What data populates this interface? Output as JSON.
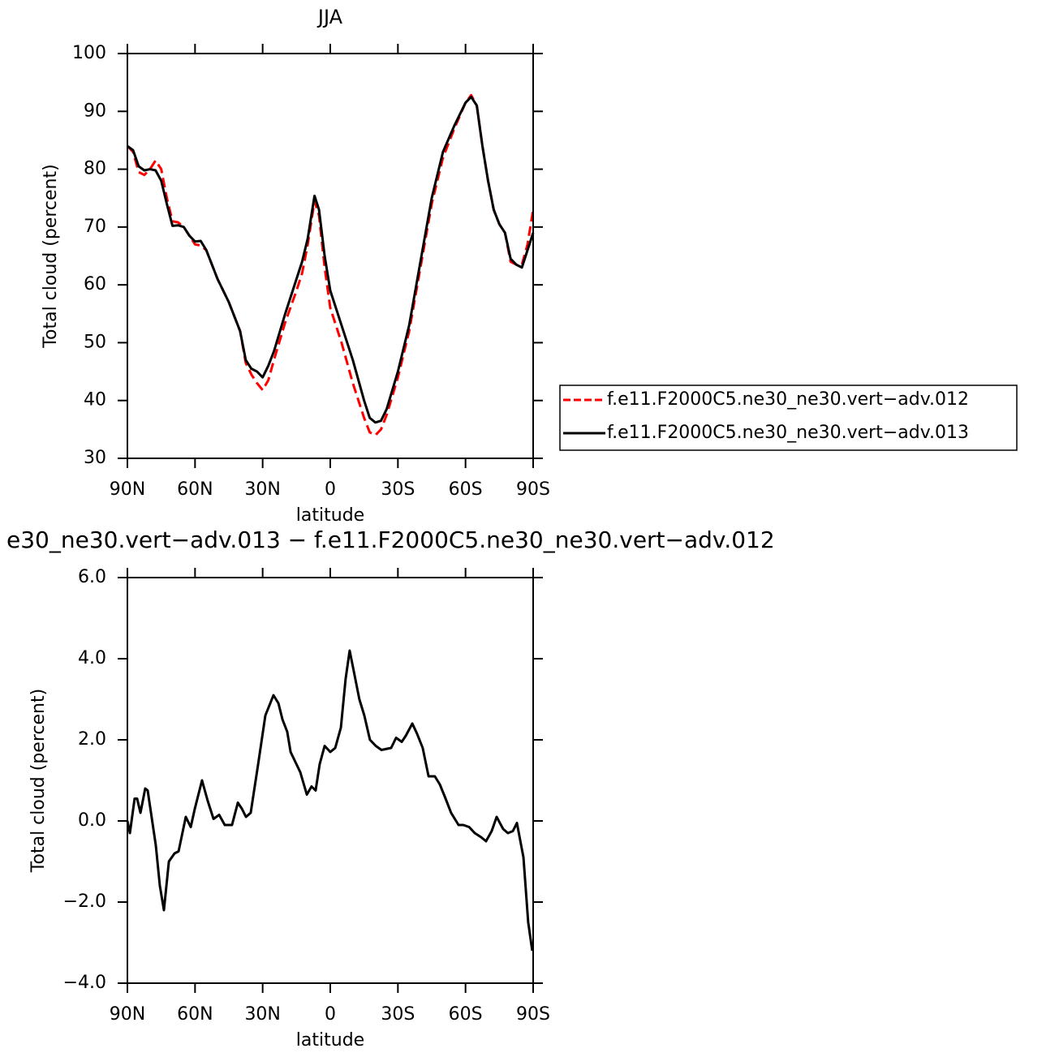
{
  "chart_data": [
    {
      "type": "line",
      "title": "JJA",
      "x_label": "latitude",
      "y_label": "Total cloud (percent)",
      "x": [
        90,
        87.5,
        85,
        82.5,
        80,
        77.5,
        75,
        72.5,
        70,
        67.5,
        65,
        62.5,
        60,
        57.5,
        55,
        50,
        45,
        40,
        37.5,
        35,
        32.5,
        30,
        27.5,
        25,
        20,
        15,
        12.5,
        10,
        7,
        5,
        2.5,
        0,
        -5,
        -10,
        -15,
        -17.5,
        -20,
        -22.5,
        -25,
        -30,
        -35,
        -40,
        -45,
        -50,
        -55,
        -60,
        -62.5,
        -65,
        -67.5,
        -70,
        -72.5,
        -75,
        -77.5,
        -80,
        -82.5,
        -85,
        -87.5,
        -90
      ],
      "series": [
        {
          "name": "f.e11.F2000C5.ne30_ne30.vert−adv.012",
          "color": "#ff0000",
          "dashed": true,
          "values": [
            84,
            83,
            79.5,
            79,
            80,
            81.5,
            80,
            75,
            71,
            70.8,
            70,
            68.5,
            67,
            66.8,
            66,
            61,
            57,
            52,
            46.5,
            44.5,
            43,
            41.8,
            43.5,
            47,
            53.5,
            59,
            62,
            67,
            74.5,
            72,
            63,
            56,
            50,
            43,
            37,
            34.5,
            34,
            35,
            37.5,
            44,
            52,
            63,
            74,
            82,
            87,
            91.5,
            92.8,
            91,
            84,
            78,
            73,
            70.5,
            69,
            64,
            63.5,
            63.5,
            67,
            73
          ]
        },
        {
          "name": "f.e11.F2000C5.ne30_ne30.vert−adv.013",
          "color": "#000000",
          "dashed": false,
          "values": [
            84,
            83.3,
            80.5,
            79.8,
            80,
            79.8,
            78,
            74,
            70.2,
            70.3,
            70,
            68.5,
            67.5,
            67.6,
            66,
            61,
            57,
            52,
            47,
            45.5,
            45,
            44,
            46,
            48.5,
            55,
            61,
            64,
            68,
            75.4,
            73,
            65,
            59,
            53,
            47,
            40,
            37,
            36.2,
            36.5,
            38.5,
            45,
            53,
            64,
            75,
            83,
            87.5,
            91.5,
            92.5,
            91,
            84,
            78,
            73,
            70.5,
            69,
            64.5,
            63.5,
            63,
            66,
            69
          ]
        }
      ],
      "xlim": [
        90,
        -90
      ],
      "xticks": [
        {
          "value": 90,
          "label": "90N"
        },
        {
          "value": 60,
          "label": "60N"
        },
        {
          "value": 30,
          "label": "30N"
        },
        0,
        {
          "value": -30,
          "label": "30S"
        },
        {
          "value": -60,
          "label": "60S"
        },
        {
          "value": -90,
          "label": "90S"
        }
      ],
      "ylim": [
        30,
        100
      ],
      "yticks": [
        30,
        40,
        50,
        60,
        70,
        80,
        90,
        100
      ],
      "legend": "right"
    },
    {
      "type": "line",
      "title": "e30_ne30.vert−adv.013 − f.e11.F2000C5.ne30_ne30.vert−adv.012",
      "x_label": "latitude",
      "y_label": "Total cloud (percent)",
      "x": [
        90,
        88.9,
        86.8,
        85.7,
        84.2,
        82.1,
        81,
        77.4,
        75.6,
        73.8,
        71.6,
        69.1,
        67.3,
        64.1,
        61.9,
        60.1,
        56.9,
        54.4,
        51.8,
        49.3,
        46.8,
        43.6,
        41,
        39.2,
        37.4,
        35.3,
        32,
        28.8,
        25.2,
        23,
        21.2,
        19.1,
        17.6,
        13.3,
        10.4,
        8.3,
        6.5,
        4.7,
        2.5,
        0,
        -2.2,
        -4.7,
        -6.8,
        -8.6,
        -10.4,
        -12.9,
        -15.1,
        -17.6,
        -20.2,
        -22.7,
        -27,
        -29.2,
        -31.7,
        -33.5,
        -36.4,
        -38.5,
        -41,
        -43.6,
        -46.4,
        -48.6,
        -50.8,
        -53.6,
        -56.9,
        -59,
        -61.6,
        -64.1,
        -66.9,
        -69.1,
        -71.6,
        -73.8,
        -76.7,
        -78.8,
        -81,
        -82.8,
        -85.7,
        -87.8,
        -89.6
      ],
      "values": [
        0,
        -0.3,
        0.55,
        0.55,
        0.2,
        0.8,
        0.75,
        -0.6,
        -1.6,
        -2.2,
        -1,
        -0.8,
        -0.75,
        0.1,
        -0.15,
        0.3,
        1,
        0.5,
        0.05,
        0.15,
        -0.1,
        -0.1,
        0.45,
        0.3,
        0.1,
        0.2,
        1.4,
        2.6,
        3.1,
        2.9,
        2.5,
        2.2,
        1.7,
        1.2,
        0.65,
        0.85,
        0.75,
        1.4,
        1.85,
        1.7,
        1.8,
        2.3,
        3.5,
        4.2,
        3.7,
        3,
        2.6,
        2,
        1.85,
        1.75,
        1.8,
        2.05,
        1.95,
        2.1,
        2.4,
        2.15,
        1.8,
        1.1,
        1.1,
        0.9,
        0.6,
        0.2,
        -0.1,
        -0.1,
        -0.15,
        -0.3,
        -0.4,
        -0.5,
        -0.25,
        0.1,
        -0.2,
        -0.3,
        -0.25,
        -0.05,
        -0.9,
        -2.5,
        -3.2
      ],
      "color": "#000000",
      "xlim": [
        90,
        -90
      ],
      "xticks": [
        {
          "value": 90,
          "label": "90N"
        },
        {
          "value": 60,
          "label": "60N"
        },
        {
          "value": 30,
          "label": "30N"
        },
        0,
        {
          "value": -30,
          "label": "30S"
        },
        {
          "value": -60,
          "label": "60S"
        },
        {
          "value": -90,
          "label": "90S"
        }
      ],
      "ylim": [
        -4,
        6
      ],
      "yticks": [
        {
          "value": -4,
          "label": "−4.0"
        },
        {
          "value": -2,
          "label": "−2.0"
        },
        {
          "value": 0,
          "label": "0.0"
        },
        {
          "value": 2,
          "label": "2.0"
        },
        {
          "value": 4,
          "label": "4.0"
        },
        {
          "value": 6,
          "label": "6.0"
        }
      ]
    }
  ]
}
